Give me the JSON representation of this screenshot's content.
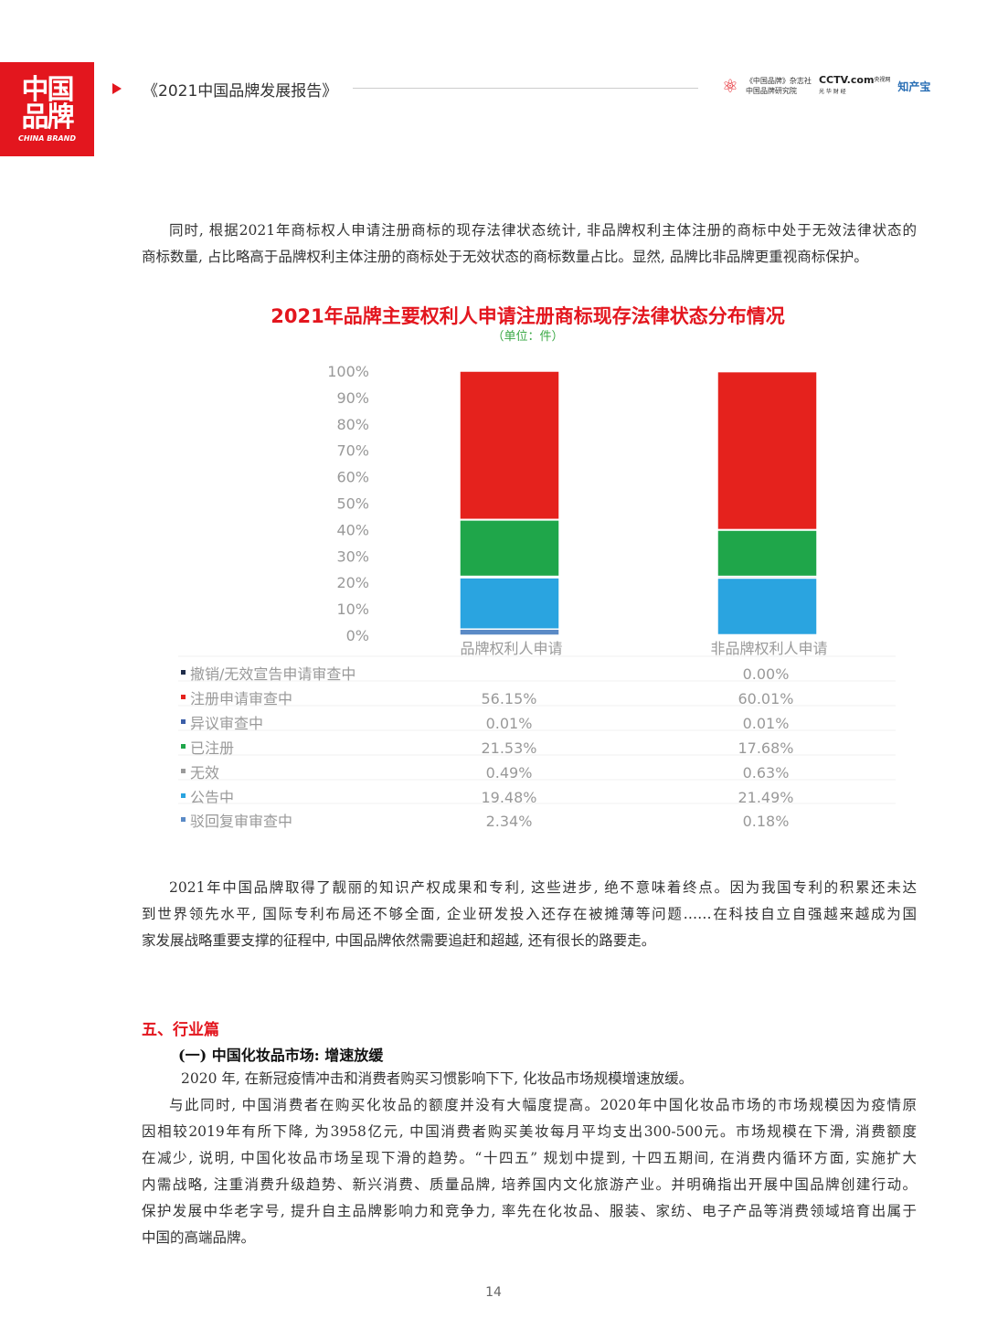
{
  "header": {
    "logo_line1": "中国",
    "logo_line2": "品牌",
    "logo_line3": "CHINA BRAND",
    "report_title": "《2021中国品牌发展报告》",
    "partners": [
      "《中国品牌》杂志社",
      "中国品牌研究院",
      "CCTV.com",
      "央视网",
      "光 华 财 经",
      "知产宝"
    ]
  },
  "intro": [
    "同时, 根据2021年商标权人申请注册商标的现存法律状态统计, 非品牌权利主体注册的商标中处于无效法律状态的",
    "商标数量, 占比略高于品牌权利主体注册的商标处于无效状态的商标数量占比。显然, 品牌比非品牌更重视商标保护。"
  ],
  "chart_data": {
    "type": "bar",
    "stacked": true,
    "title": "2021年品牌主要权利人申请注册商标现存法律状态分布情况",
    "subtitle": "（单位：件）",
    "categories": [
      "品牌权利人申请",
      "非品牌权利人申请"
    ],
    "ylim": [
      0,
      100
    ],
    "yticks": [
      "0%",
      "10%",
      "20%",
      "30%",
      "40%",
      "50%",
      "60%",
      "70%",
      "80%",
      "90%",
      "100%"
    ],
    "legend_placement": "data-table-left",
    "series": [
      {
        "name": "撤销/无效宣告申请审查中",
        "color": "#1f2d4a",
        "values": [
          null,
          0.0
        ],
        "labels": [
          "",
          "0.00%"
        ]
      },
      {
        "name": "注册申请审查中",
        "color": "#e5221d",
        "values": [
          56.15,
          60.01
        ],
        "labels": [
          "56.15%",
          "60.01%"
        ]
      },
      {
        "name": "异议审查中",
        "color": "#3c5fa8",
        "values": [
          0.01,
          0.01
        ],
        "labels": [
          "0.01%",
          "0.01%"
        ]
      },
      {
        "name": "已注册",
        "color": "#1fa64a",
        "values": [
          21.53,
          17.68
        ],
        "labels": [
          "21.53%",
          "17.68%"
        ]
      },
      {
        "name": "无效",
        "color": "#9a9a9a",
        "values": [
          0.49,
          0.63
        ],
        "labels": [
          "0.49%",
          "0.63%"
        ]
      },
      {
        "name": "公告中",
        "color": "#2aa4e0",
        "values": [
          19.48,
          21.49
        ],
        "labels": [
          "19.48%",
          "21.49%"
        ]
      },
      {
        "name": "驳回复审审查中",
        "color": "#5a8ac6",
        "values": [
          2.34,
          0.18
        ],
        "labels": [
          "2.34%",
          "0.18%"
        ]
      }
    ]
  },
  "para2": [
    "2021年中国品牌取得了靓丽的知识产权成果和专利, 这些进步, 绝不意味着终点。因为我国专利的积累还未达",
    "到世界领先水平, 国际专利布局还不够全面, 企业研发投入还存在被摊薄等问题……在科技自立自强越来越成为国",
    "家发展战略重要支撑的征程中, 中国品牌依然需要追赶和超越, 还有很长的路要走。"
  ],
  "section": {
    "heading": "五、行业篇",
    "subheading": "(一) 中国化妆品市场: 增速放缓"
  },
  "para3": [
    "2020 年, 在新冠疫情冲击和消费者购买习惯影响下下, 化妆品市场规模增速放缓。"
  ],
  "para4": [
    "与此同时, 中国消费者在购买化妆品的额度并没有大幅度提高。2020年中国化妆品市场的市场规模因为疫情原",
    "因相较2019年有所下降, 为3958亿元, 中国消费者购买美妆每月平均支出300-500元。市场规模在下滑, 消费额度",
    "在减少, 说明, 中国化妆品市场呈现下滑的趋势。“十四五” 规划中提到, 十四五期间, 在消费内循环方面, 实施扩大",
    "内需战略, 注重消费升级趋势、新兴消费、质量品牌, 培养国内文化旅游产业。并明确指出开展中国品牌创建行动。",
    "保护发展中华老字号, 提升自主品牌影响力和竞争力, 率先在化妆品、服装、家纺、电子产品等消费领域培育出属于",
    "中国的高端品牌。"
  ],
  "page_number": "14"
}
